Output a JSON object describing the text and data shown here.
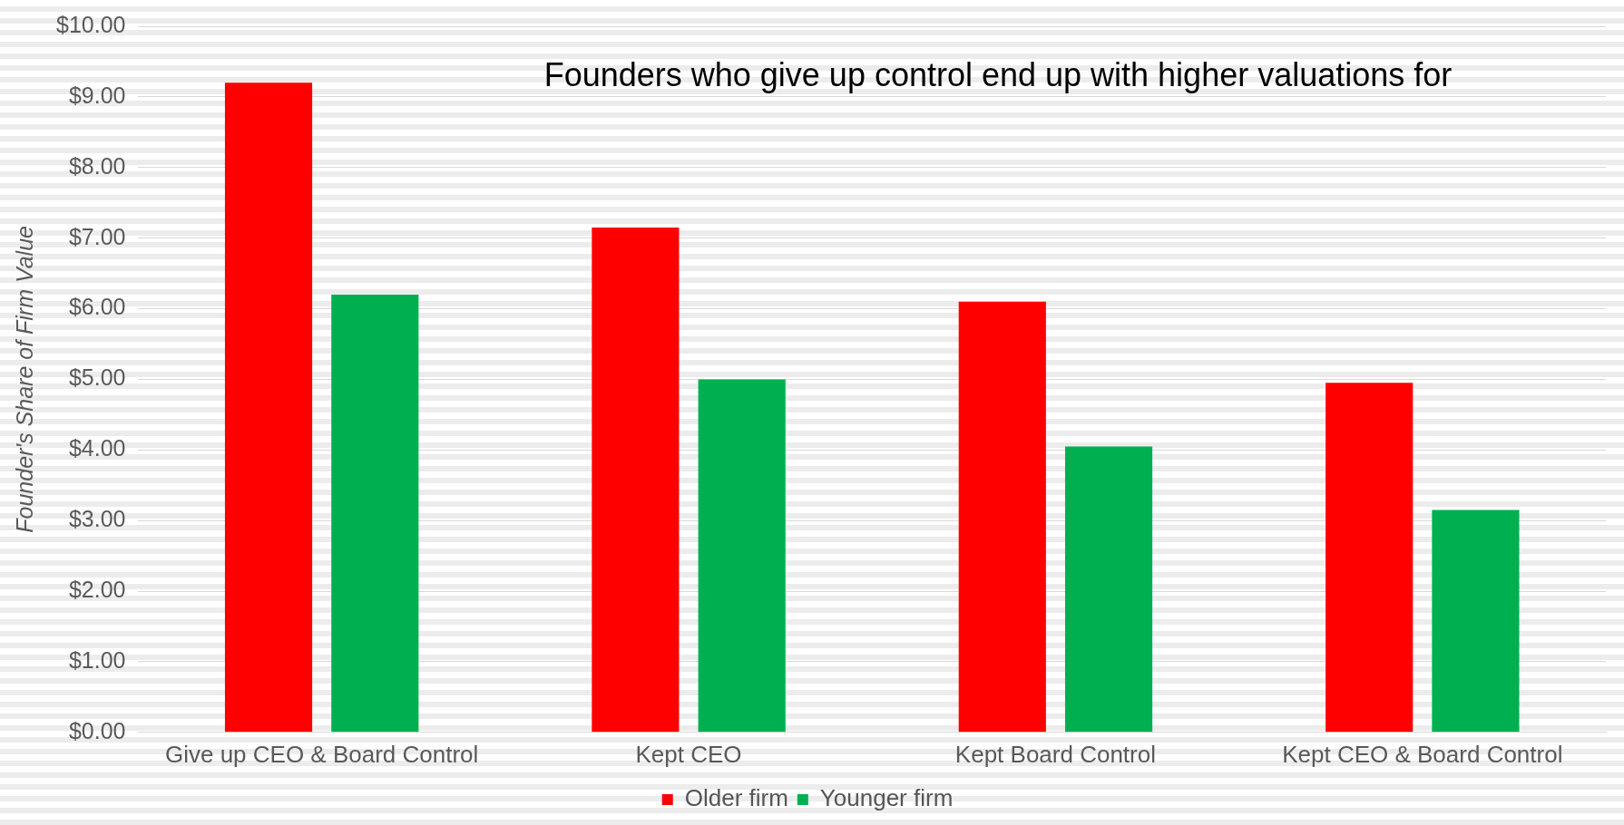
{
  "chart_data": {
    "type": "bar",
    "title": "Founders who give up control end up with higher valuations for",
    "ylabel": "Founder's Share of Firm Value",
    "categories": [
      "Give up CEO & Board Control",
      "Kept CEO",
      "Kept Board Control",
      "Kept CEO & Board Control"
    ],
    "series": [
      {
        "name": "Older firm",
        "color": "#ff0000",
        "values": [
          9.2,
          7.15,
          6.1,
          4.95
        ]
      },
      {
        "name": "Younger firm",
        "color": "#00b050",
        "values": [
          6.2,
          5.0,
          4.05,
          3.15
        ]
      }
    ],
    "ylim": [
      0,
      10
    ],
    "yticks": [
      {
        "value": 0,
        "label": "$0.00"
      },
      {
        "value": 1,
        "label": "$1.00"
      },
      {
        "value": 2,
        "label": "$2.00"
      },
      {
        "value": 3,
        "label": "$3.00"
      },
      {
        "value": 4,
        "label": "$4.00"
      },
      {
        "value": 5,
        "label": "$5.00"
      },
      {
        "value": 6,
        "label": "$6.00"
      },
      {
        "value": 7,
        "label": "$7.00"
      },
      {
        "value": 8,
        "label": "$8.00"
      },
      {
        "value": 9,
        "label": "$9.00"
      },
      {
        "value": 10,
        "label": "$10.00"
      }
    ],
    "grid": "y",
    "legend": "bottom"
  }
}
